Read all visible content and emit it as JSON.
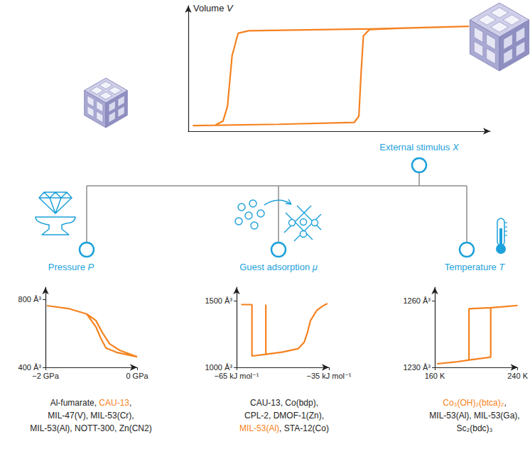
{
  "diagram": {
    "highlight_color": "#f58220",
    "label_color": "#1da1db",
    "branches": [
      {
        "label": "Pressure P",
        "materials": [
          [
            "Al-fumarate, ",
            "CAU-13",
            ","
          ],
          [
            "MIL-47(V), MIL-53(Cr),"
          ],
          [
            "MIL-53(Al), NOTT-300, Zn(CN2)"
          ]
        ],
        "highlight": "CAU-13"
      },
      {
        "label": "Guest adsorption μ",
        "materials": [
          [
            "CAU-13, Co(bdp),"
          ],
          [
            "CPL-2, DMOF-1(Zn),"
          ],
          [
            "MIL-53(Al)",
            ", STA-12(Co)"
          ]
        ],
        "highlight": "MIL-53(Al)"
      },
      {
        "label": "Temperature T",
        "materials": [
          [
            "Co₃(OH)₂(btca)₂",
            ","
          ],
          [
            "MIL-53(Al), MIL-53(Ga),"
          ],
          [
            "Sc₂(bdc)₃"
          ]
        ],
        "highlight": "Co₃(OH)₂(btca)₂"
      }
    ]
  },
  "chart_data": [
    {
      "type": "line",
      "ylabel": "Volume V",
      "xlabel": "External stimulus X",
      "x": [
        0.15,
        3,
        5.5,
        5.65,
        5.72,
        5.8,
        6.0,
        7.0,
        9.3,
        6.0,
        2.0,
        1.65,
        1.45,
        1.3,
        1.15,
        0.9
      ],
      "values": [
        0.45,
        0.55,
        0.7,
        1.2,
        4.5,
        7.6,
        8.1,
        8.2,
        8.35,
        8.15,
        8.0,
        7.8,
        6.0,
        2.0,
        0.8,
        0.5
      ],
      "xlim": [
        0,
        10
      ],
      "ylim": [
        0,
        10
      ],
      "tick_labels": false,
      "grid": false,
      "color": "#f58220"
    },
    {
      "type": "line",
      "x": [
        -1.97,
        -1.5,
        -1.1,
        -0.9,
        -0.75,
        -0.6,
        -0.38,
        0,
        -0.45,
        -0.68,
        -0.8,
        -0.9,
        -1.1
      ],
      "values": [
        762,
        745,
        713,
        675,
        600,
        538,
        500,
        462,
        488,
        513,
        575,
        638,
        713
      ],
      "xlim": [
        -2,
        0
      ],
      "ylim": [
        400,
        870
      ],
      "xticks": [
        {
          "value": -2,
          "label": "−2 GPa"
        },
        {
          "value": 0,
          "label": "0 GPa"
        }
      ],
      "yticks": [
        {
          "value": 400,
          "label": "400 Å³"
        },
        {
          "value": 800,
          "label": "800 Å³"
        }
      ],
      "grid": false,
      "color": "#f58220"
    },
    {
      "type": "line",
      "x": [
        -63.5,
        -60,
        -60,
        -55.5,
        -50,
        -45,
        -43,
        -42,
        -41,
        -39,
        -37,
        -35.5,
        -55.5,
        -55.5,
        -55.5
      ],
      "values": [
        1470,
        1470,
        1085,
        1098,
        1115,
        1140,
        1190,
        1260,
        1350,
        1425,
        1460,
        1478,
        null,
        1098,
        1470
      ],
      "xlim": [
        -65,
        -35
      ],
      "ylim": [
        1000,
        1600
      ],
      "xticks": [
        {
          "value": -65,
          "label": "−65 kJ mol⁻¹"
        },
        {
          "value": -35,
          "label": "−35 kJ mol⁻¹"
        }
      ],
      "yticks": [
        {
          "value": 1000,
          "label": "1000 Å³"
        },
        {
          "value": 1500,
          "label": "1500 Å³"
        }
      ],
      "grid": false,
      "color": "#f58220"
    },
    {
      "type": "line",
      "x": [
        162,
        180,
        192,
        205,
        214,
        214,
        225,
        240,
        214,
        214,
        193,
        193
      ],
      "values": [
        1231.6,
        1232.4,
        1233.2,
        1234,
        1234.6,
        1256.8,
        1257.2,
        1257.8,
        null,
        1256.8,
        1256.3,
        1233.3
      ],
      "xlim": [
        160,
        240
      ],
      "ylim": [
        1230,
        1266
      ],
      "xticks": [
        {
          "value": 160,
          "label": "160 K"
        },
        {
          "value": 240,
          "label": "240 K"
        }
      ],
      "yticks": [
        {
          "value": 1230,
          "label": "1230 Å³"
        },
        {
          "value": 1260,
          "label": "1260 Å³"
        }
      ],
      "grid": false,
      "color": "#f58220"
    }
  ]
}
